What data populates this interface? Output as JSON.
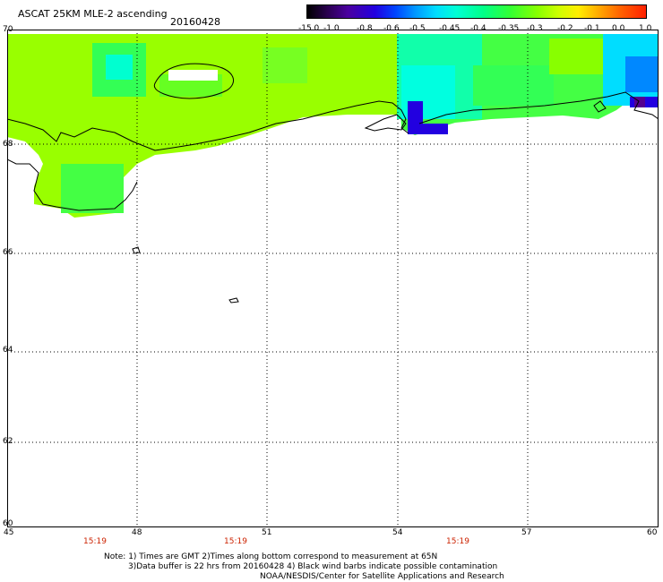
{
  "header": {
    "title": "ASCAT 25KM MLE-2 ascending",
    "date": "20160428"
  },
  "colorbar": {
    "ticks": [
      "-15.0",
      "-1.0",
      "-0.8",
      "-0.6",
      "-0.5",
      "-0.45",
      "-0.4",
      "-0.35",
      "-0.3",
      "-0.2",
      "-0.1",
      "0.0",
      "1.0"
    ]
  },
  "axes": {
    "lat_labels": [
      "70",
      "68",
      "66",
      "64",
      "62",
      "60"
    ],
    "lon_labels": [
      "45",
      "48",
      "51",
      "54",
      "57",
      "60"
    ],
    "time_labels": [
      "15:19",
      "15:19",
      "15:19"
    ]
  },
  "notes": {
    "line1": "Note: 1) Times are GMT 2)Times along bottom correspond to measurement at 65N",
    "line2": "3)Data buffer is 22 hrs from 20160428 4) Black wind barbs indicate possible contamination",
    "line3": "NOAA/NESDIS/Center for Satellite Applications and Research"
  },
  "colors": {
    "land_fill": "#99ff00",
    "low_value": "#2200e0",
    "cyan": "#00ffe0",
    "green": "#33ff33"
  }
}
